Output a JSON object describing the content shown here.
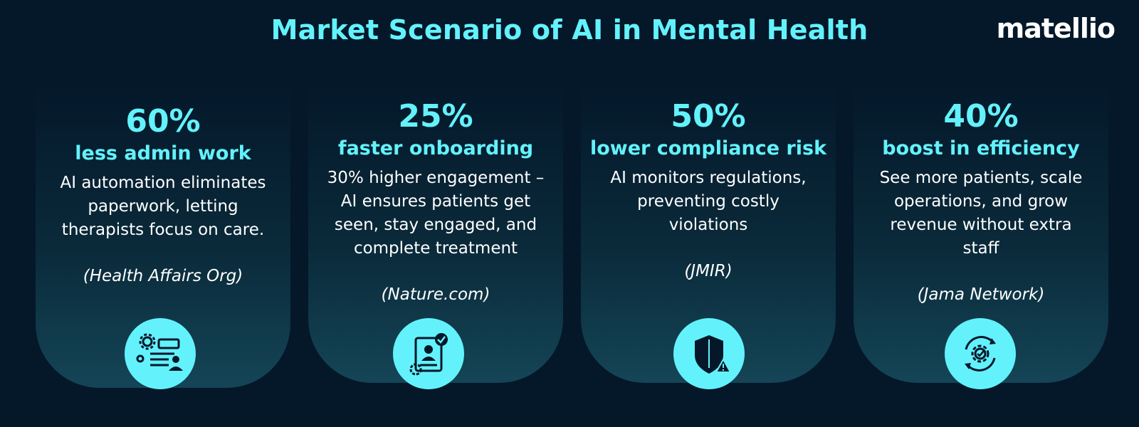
{
  "title": "Market Scenario of AI in Mental Health",
  "logo": "matellio",
  "colors": {
    "accent": "#63f2fb",
    "background": "#04182a",
    "text": "#ffffff"
  },
  "cards": [
    {
      "percent": "60%",
      "headline": "less admin work",
      "description": "AI automation eliminates paperwork, letting therapists focus on care.",
      "source": "(Health Affairs Org)",
      "icon": "gears-document-user-icon"
    },
    {
      "percent": "25%",
      "headline": "faster onboarding",
      "description": "30% higher engagement – AI ensures patients get seen, stay engaged, and complete treatment",
      "source": "(Nature.com)",
      "icon": "profile-check-gear-icon"
    },
    {
      "percent": "50%",
      "headline": "lower compliance risk",
      "description": "AI monitors regulations, preventing costly violations",
      "source": "(JMIR)",
      "icon": "shield-warning-icon"
    },
    {
      "percent": "40%",
      "headline": "boost in efficiency",
      "description": "See more patients, scale operations, and grow revenue without extra staff",
      "source": "(Jama Network)",
      "icon": "gear-cycle-check-icon"
    }
  ]
}
